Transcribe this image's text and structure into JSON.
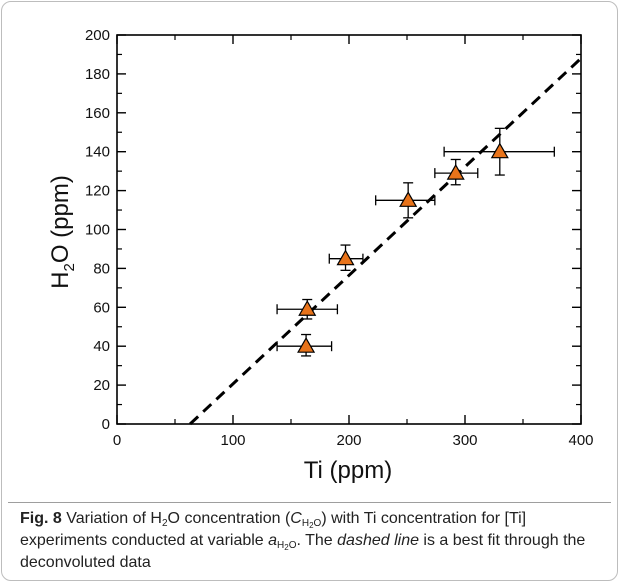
{
  "chart_data": {
    "type": "scatter",
    "xlabel": "Ti (ppm)",
    "ylabel_main": "H",
    "ylabel_sub": "2",
    "ylabel_rest": "O (ppm)",
    "xlim": [
      0,
      400
    ],
    "ylim": [
      0,
      200
    ],
    "x_ticks": [
      0,
      100,
      200,
      300,
      400
    ],
    "y_ticks": [
      0,
      20,
      40,
      60,
      80,
      100,
      120,
      140,
      160,
      180,
      200
    ],
    "grid": false,
    "marker_color": "#e8731a",
    "points": [
      {
        "x": 163,
        "y": 40,
        "xerr_low": 138,
        "xerr_high": 185,
        "yerr_low": 35,
        "yerr_high": 46
      },
      {
        "x": 164,
        "y": 59,
        "xerr_low": 138,
        "xerr_high": 190,
        "yerr_low": 54,
        "yerr_high": 64
      },
      {
        "x": 197,
        "y": 85,
        "xerr_low": 183,
        "xerr_high": 212,
        "yerr_low": 79,
        "yerr_high": 92
      },
      {
        "x": 251,
        "y": 115,
        "xerr_low": 223,
        "xerr_high": 274,
        "yerr_low": 106,
        "yerr_high": 124
      },
      {
        "x": 292,
        "y": 129,
        "xerr_low": 274,
        "xerr_high": 311,
        "yerr_low": 123,
        "yerr_high": 136
      },
      {
        "x": 330,
        "y": 140,
        "xerr_low": 282,
        "xerr_high": 377,
        "yerr_low": 128,
        "yerr_high": 152
      }
    ],
    "fit_line": {
      "style": "dashed",
      "x": [
        63,
        400
      ],
      "y": [
        0,
        188
      ]
    }
  },
  "caption": {
    "fig_label": "Fig. 8",
    "text_1": " Variation of H",
    "sub_1": "2",
    "text_2": "O concentration (",
    "c_symbol": "C",
    "c_sub_h": "H",
    "c_sub_2": "2",
    "c_sub_o": "O",
    "text_3": ") with Ti concentration for [Ti] experiments conducted at variable ",
    "a_symbol": "a",
    "a_sub_h": "H",
    "a_sub_2": "2",
    "a_sub_o": "O",
    "text_4": ". The ",
    "dashed_line": "dashed line",
    "text_5": " is a best fit through the deconvoluted data"
  }
}
